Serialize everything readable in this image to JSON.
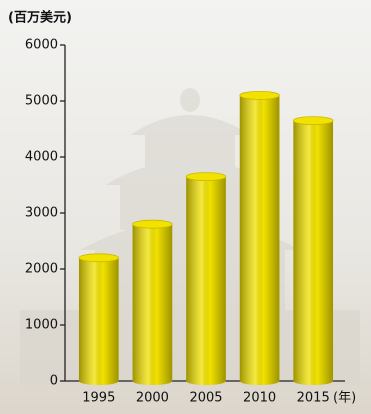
{
  "chart_data": {
    "type": "bar",
    "y_label": "(百万美元)",
    "x_label": "(年)",
    "categories": [
      "1995",
      "2000",
      "2005",
      "2010",
      "2015"
    ],
    "values": [
      2200,
      2800,
      3650,
      5100,
      4650
    ],
    "color": "#f2e200",
    "ylim": [
      0,
      6000
    ],
    "yticks": [
      0,
      1000,
      2000,
      3000,
      4000,
      5000,
      6000
    ]
  }
}
